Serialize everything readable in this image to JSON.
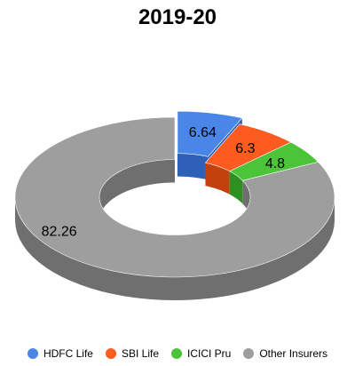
{
  "chart_data": {
    "type": "pie",
    "title": "2019-20",
    "categories": [
      "HDFC Life",
      "SBI Life",
      "ICICI Pru",
      "Other Insurers"
    ],
    "values": [
      6.64,
      6.3,
      4.8,
      82.26
    ],
    "value_labels": [
      "6.64",
      "6.3",
      "4.8",
      "82.26"
    ],
    "colors": [
      "#4a86e8",
      "#ff5a1f",
      "#4cc43a",
      "#9e9e9e"
    ],
    "side_colors": [
      "#2f60b8",
      "#c2410c",
      "#2f8f20",
      "#6f6f6f"
    ],
    "style": "3d-donut",
    "exploded": [
      "HDFC Life"
    ],
    "legend_position": "bottom"
  }
}
